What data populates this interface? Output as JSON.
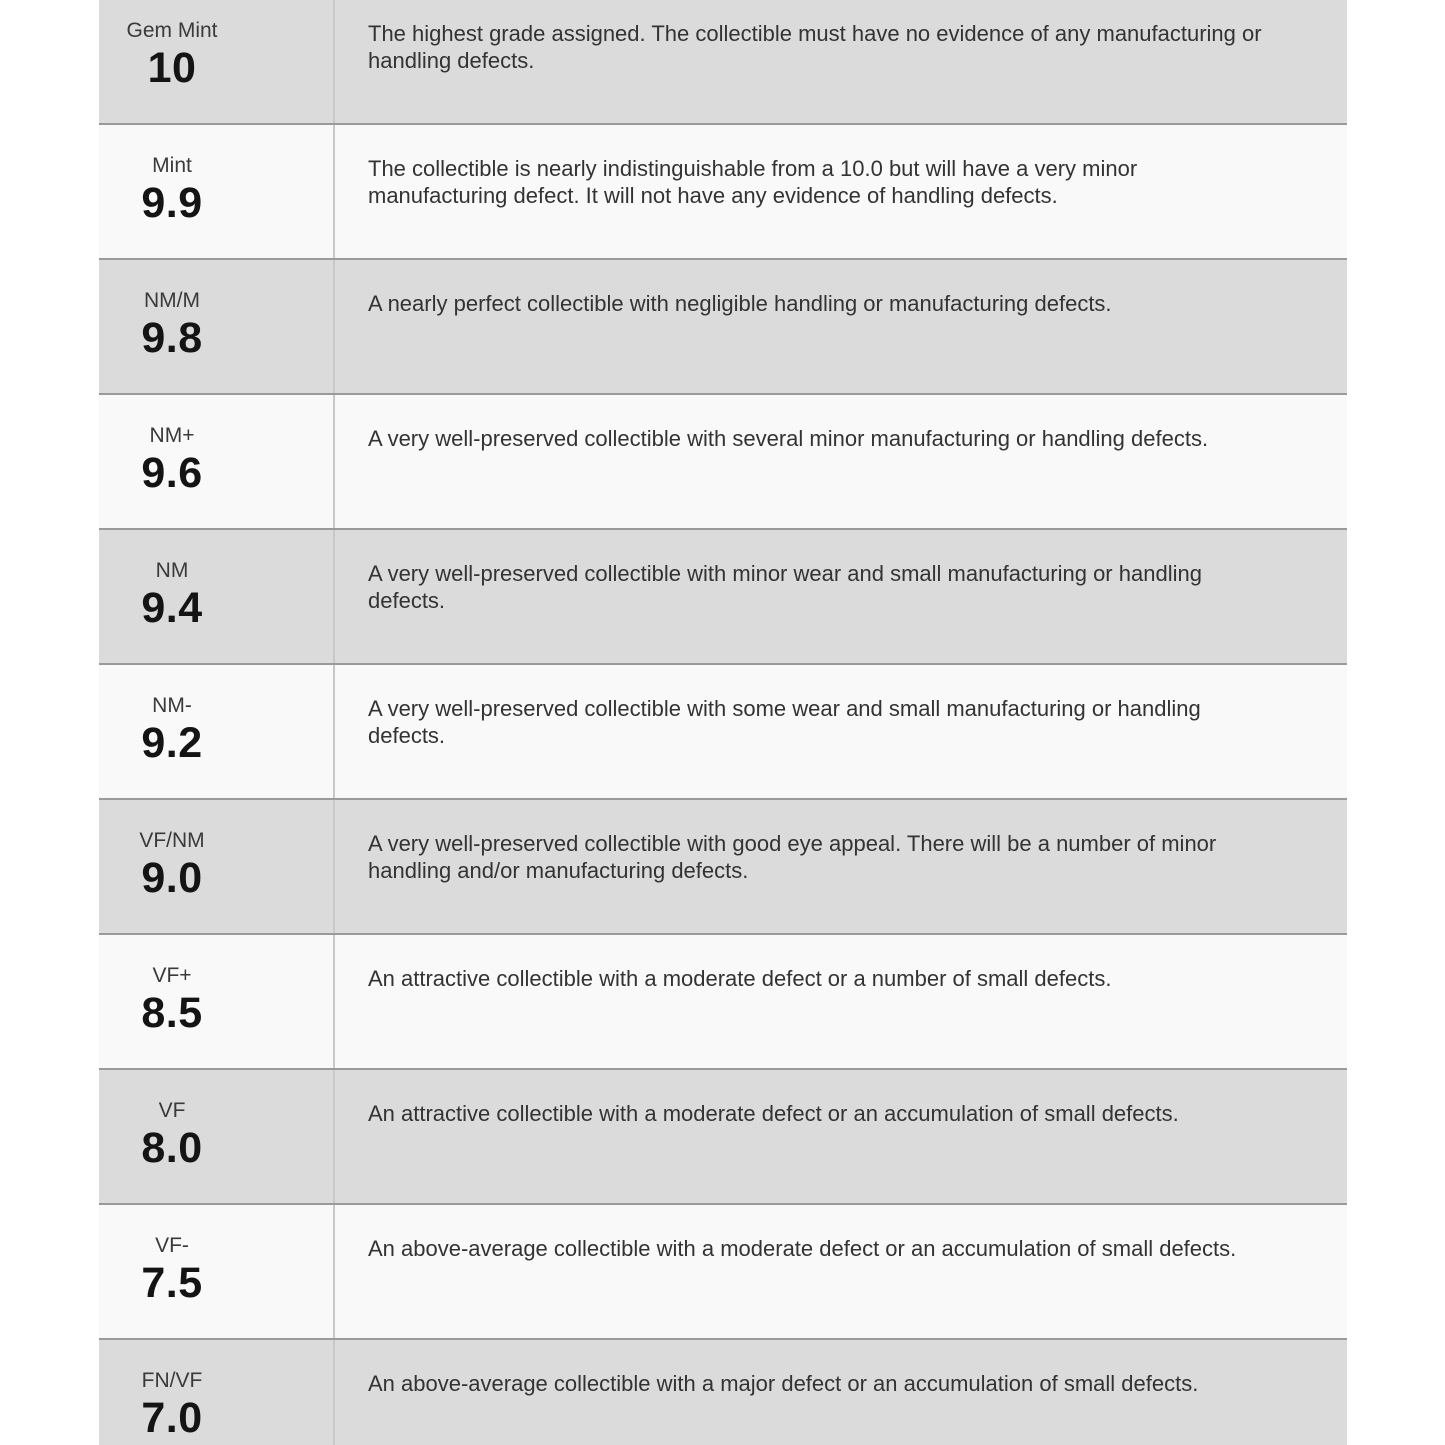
{
  "table": {
    "name": "collectible-grading-scale",
    "rows": [
      {
        "label": "Gem Mint",
        "grade": "10",
        "description": "The highest grade assigned. The collectible must have no evidence of any manufacturing or\nhandling defects."
      },
      {
        "label": "Mint",
        "grade": "9.9",
        "description": "The collectible is nearly indistinguishable from a 10.0 but will have a very minor\nmanufacturing defect. It will not have any evidence of handling defects."
      },
      {
        "label": "NM/M",
        "grade": "9.8",
        "description": "A nearly perfect collectible with negligible handling or manufacturing defects."
      },
      {
        "label": "NM+",
        "grade": "9.6",
        "description": "A very well-preserved collectible with several minor manufacturing or handling defects."
      },
      {
        "label": "NM",
        "grade": "9.4",
        "description": "A very well-preserved collectible with minor wear and small manufacturing or handling\ndefects."
      },
      {
        "label": "NM-",
        "grade": "9.2",
        "description": "A very well-preserved collectible with some wear and small manufacturing or handling\ndefects."
      },
      {
        "label": "VF/NM",
        "grade": "9.0",
        "description": "A very well-preserved collectible with good eye appeal. There will be a number of minor\nhandling and/or manufacturing defects."
      },
      {
        "label": "VF+",
        "grade": "8.5",
        "description": "An attractive collectible with a moderate defect or a number of small defects."
      },
      {
        "label": "VF",
        "grade": "8.0",
        "description": "An attractive collectible with a moderate defect or an accumulation of small defects."
      },
      {
        "label": "VF-",
        "grade": "7.5",
        "description": "An above-average collectible with a moderate defect or an accumulation of small defects."
      },
      {
        "label": "FN/VF",
        "grade": "7.0",
        "description": "An above-average collectible with a major defect or an accumulation of small defects."
      }
    ],
    "colors": {
      "row_gray": "#dbdbdb",
      "row_light": "#f9f9f9",
      "border_horizontal": "#9a9a9a",
      "border_vertical": "#c8c8c8",
      "description_text": "#333333",
      "grade_number_text": "#141414"
    }
  }
}
